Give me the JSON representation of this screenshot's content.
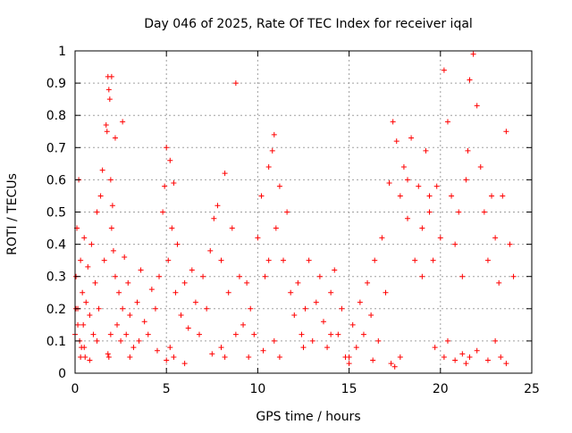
{
  "chart_data": {
    "type": "scatter",
    "title": "Day 046 of 2025, Rate Of TEC Index for receiver iqal",
    "xlabel": "GPS time / hours",
    "ylabel": "ROTI / TECUs",
    "xlim": [
      0,
      25
    ],
    "ylim": [
      0,
      1
    ],
    "xticks": [
      0,
      5,
      10,
      15,
      20,
      25
    ],
    "xtick_labels": [
      "0",
      "5",
      "10",
      "15",
      "20",
      "25"
    ],
    "yticks": [
      0,
      0.1,
      0.2,
      0.3,
      0.4,
      0.5,
      0.6,
      0.7,
      0.8,
      0.9,
      1
    ],
    "ytick_labels": [
      "0",
      "0.1",
      "0.2",
      "0.3",
      "0.4",
      "0.5",
      "0.6",
      "0.7",
      "0.8",
      "0.9",
      "1"
    ],
    "grid": true,
    "marker": "+",
    "color": "#ff0000",
    "series": [
      {
        "name": "ROTI",
        "x": [
          0.0,
          0.05,
          0.1,
          0.15,
          0.2,
          0.25,
          0.3,
          0.35,
          0.4,
          0.45,
          0.5,
          0.55,
          0.6,
          0.7,
          0.8,
          0.9,
          1.0,
          1.1,
          1.2,
          1.3,
          1.4,
          1.5,
          1.6,
          1.7,
          1.75,
          1.8,
          1.85,
          1.9,
          1.95,
          2.0,
          2.05,
          2.1,
          2.2,
          2.3,
          2.4,
          2.5,
          2.6,
          2.7,
          2.8,
          2.9,
          3.0,
          3.2,
          3.4,
          3.6,
          3.8,
          4.0,
          4.2,
          4.4,
          4.6,
          4.8,
          4.9,
          5.0,
          5.1,
          5.2,
          5.3,
          5.4,
          5.5,
          5.6,
          5.8,
          6.0,
          6.2,
          6.4,
          6.6,
          6.8,
          7.0,
          7.2,
          7.4,
          7.6,
          7.8,
          8.0,
          8.2,
          8.4,
          8.6,
          8.8,
          9.0,
          9.2,
          9.4,
          9.6,
          9.8,
          10.0,
          10.2,
          10.4,
          10.6,
          10.8,
          10.9,
          11.0,
          11.2,
          11.4,
          11.6,
          11.8,
          12.0,
          12.2,
          12.4,
          12.6,
          12.8,
          13.0,
          13.2,
          13.4,
          13.6,
          13.8,
          14.0,
          14.2,
          14.4,
          14.6,
          14.8,
          15.0,
          15.2,
          15.4,
          15.6,
          15.8,
          16.0,
          16.2,
          16.4,
          16.6,
          16.8,
          17.0,
          17.2,
          17.4,
          17.6,
          17.8,
          18.0,
          18.2,
          18.4,
          18.6,
          18.8,
          19.0,
          19.2,
          19.4,
          19.6,
          19.8,
          20.0,
          20.2,
          20.4,
          20.6,
          20.8,
          21.0,
          21.2,
          21.4,
          21.5,
          21.6,
          21.8,
          22.0,
          22.2,
          22.4,
          22.6,
          22.8,
          23.0,
          23.2,
          23.4,
          23.6,
          23.8,
          24.0,
          0.05,
          0.15,
          0.3,
          0.5,
          0.8,
          1.2,
          1.8,
          1.85,
          1.95,
          2.0,
          2.2,
          2.6,
          3.0,
          3.5,
          4.5,
          5.0,
          5.2,
          5.4,
          6.0,
          7.5,
          8.0,
          8.2,
          8.8,
          9.5,
          10.3,
          10.6,
          10.9,
          11.2,
          12.5,
          14.0,
          15.0,
          16.3,
          17.3,
          17.5,
          17.8,
          18.2,
          19.0,
          19.4,
          19.7,
          20.2,
          20.4,
          20.8,
          21.2,
          21.4,
          21.6,
          22.0,
          22.6,
          23.0,
          23.3,
          23.6
        ],
        "y": [
          0.12,
          0.3,
          0.45,
          0.2,
          0.6,
          0.1,
          0.35,
          0.08,
          0.25,
          0.15,
          0.42,
          0.05,
          0.22,
          0.33,
          0.18,
          0.4,
          0.12,
          0.28,
          0.5,
          0.2,
          0.55,
          0.63,
          0.35,
          0.77,
          0.75,
          0.92,
          0.88,
          0.85,
          0.6,
          0.45,
          0.52,
          0.38,
          0.3,
          0.15,
          0.25,
          0.1,
          0.2,
          0.36,
          0.12,
          0.28,
          0.18,
          0.08,
          0.22,
          0.32,
          0.16,
          0.12,
          0.26,
          0.2,
          0.3,
          0.5,
          0.58,
          0.7,
          0.35,
          0.66,
          0.45,
          0.59,
          0.25,
          0.4,
          0.18,
          0.28,
          0.14,
          0.32,
          0.22,
          0.12,
          0.3,
          0.2,
          0.38,
          0.48,
          0.52,
          0.35,
          0.62,
          0.25,
          0.45,
          0.9,
          0.3,
          0.15,
          0.28,
          0.2,
          0.12,
          0.42,
          0.55,
          0.3,
          0.64,
          0.69,
          0.74,
          0.45,
          0.58,
          0.35,
          0.5,
          0.25,
          0.18,
          0.28,
          0.12,
          0.2,
          0.35,
          0.1,
          0.22,
          0.3,
          0.16,
          0.08,
          0.25,
          0.32,
          0.12,
          0.2,
          0.05,
          0.03,
          0.15,
          0.08,
          0.22,
          0.12,
          0.28,
          0.18,
          0.35,
          0.1,
          0.42,
          0.25,
          0.59,
          0.78,
          0.72,
          0.55,
          0.64,
          0.48,
          0.73,
          0.35,
          0.58,
          0.3,
          0.69,
          0.5,
          0.35,
          0.58,
          0.42,
          0.94,
          0.78,
          0.55,
          0.4,
          0.5,
          0.3,
          0.6,
          0.69,
          0.91,
          0.99,
          0.83,
          0.64,
          0.5,
          0.35,
          0.55,
          0.42,
          0.28,
          0.55,
          0.75,
          0.4,
          0.3,
          0.2,
          0.15,
          0.05,
          0.08,
          0.04,
          0.1,
          0.06,
          0.05,
          0.12,
          0.92,
          0.73,
          0.78,
          0.05,
          0.1,
          0.07,
          0.04,
          0.08,
          0.05,
          0.03,
          0.06,
          0.08,
          0.05,
          0.12,
          0.05,
          0.07,
          0.35,
          0.1,
          0.05,
          0.08,
          0.12,
          0.05,
          0.04,
          0.03,
          0.02,
          0.05,
          0.6,
          0.45,
          0.55,
          0.08,
          0.05,
          0.1,
          0.04,
          0.06,
          0.03,
          0.05,
          0.07,
          0.04,
          0.1,
          0.05,
          0.03
        ]
      }
    ]
  }
}
